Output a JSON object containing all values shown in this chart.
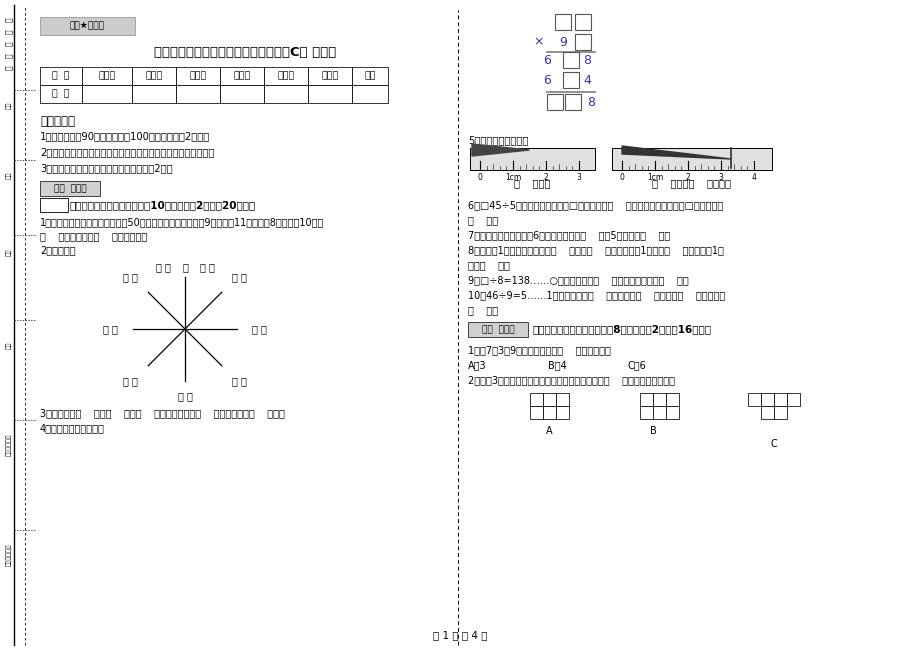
{
  "title": "沪教版三年级数学上学期自我检测试卷C卷 含答案",
  "watermark": "绝密★启用前",
  "bg_color": "#ffffff",
  "page_footer": "第 1 页 共 4 页",
  "table_headers": [
    "题  号",
    "填空题",
    "选择题",
    "判断题",
    "计算题",
    "综合题",
    "应用题",
    "总分"
  ],
  "table_row": [
    "得  分",
    "",
    "",
    "",
    "",
    "",
    "",
    ""
  ],
  "section1_title": "考试须知：",
  "notes": [
    "1、考试时间：90分钟，满分为100分（含卷面分2分）。",
    "2、请首先按要求在试卷的指定位置域写您的姓名、班级、学号。",
    "3、不要在试卷上乱写乱画，卷面不整洁扣2分。"
  ],
  "section2_label": "得分  评卷人",
  "section2_title": "一、用心思考，正确填空（共10小题，每题2分，共20分）。",
  "q1a": "1、体育老师对第一小组同学进行50米跑测试，成绩如下小红9秒，小丽11秒，小明8秒，小军10秒，",
  "q1b": "（    ）跑得最快，（    ）跑得最慢。",
  "q2": "2、填一填。",
  "q3": "3、你出生于（    ）年（    ）月（    ）日，那一年是（    ）年，全年有（    ）天。",
  "q4": "4、在里填上适当的数。",
  "right_section_label5": "5、量出钉子的长度。",
  "ruler1_labels": [
    "0",
    "1cm",
    "2",
    "3"
  ],
  "ruler2_labels": [
    "0",
    "1cm",
    "2",
    "3",
    "4"
  ],
  "ruler1_unit": "（    ）毫米",
  "ruler2_unit": "（    ）厘米（    ）毫米。",
  "q6a": "6、□45÷5，要使商是两位数，□里最大可填（    ）；要使商是三位数，□里最小应填",
  "q6b": "（    ）。",
  "q7": "7、把一根绳子平均分成6份，每份是它的（    ），5份是它的（    ）。",
  "q8a": "8、分针走1小格，秒针正好走（    ），是（    ）秒。分针走1大格是（    ），时针走1大",
  "q8b": "格是（    ）。",
  "q9": "9、□÷8=138……○，余数最大填（    ），这时被除数是（    ）。",
  "q10a": "10、46÷9=5……1中，被除数是（    ），除数是（    ），商是（    ），余数是",
  "q10b": "（    ）。",
  "section3_label": "得分  评卷人",
  "section3_title": "二、反复比较，慎重选择（共8小题，每题2分，共16分）。",
  "mc1": "1、用7、3、9三个数字可组成（    ）个三位数。",
  "mc1_options": [
    "A、3",
    "B、4",
    "C、6"
  ],
  "mc2": "2、下列3个图形中，每个小正方形都一样大，那么（    ）图形的周长最长。"
}
